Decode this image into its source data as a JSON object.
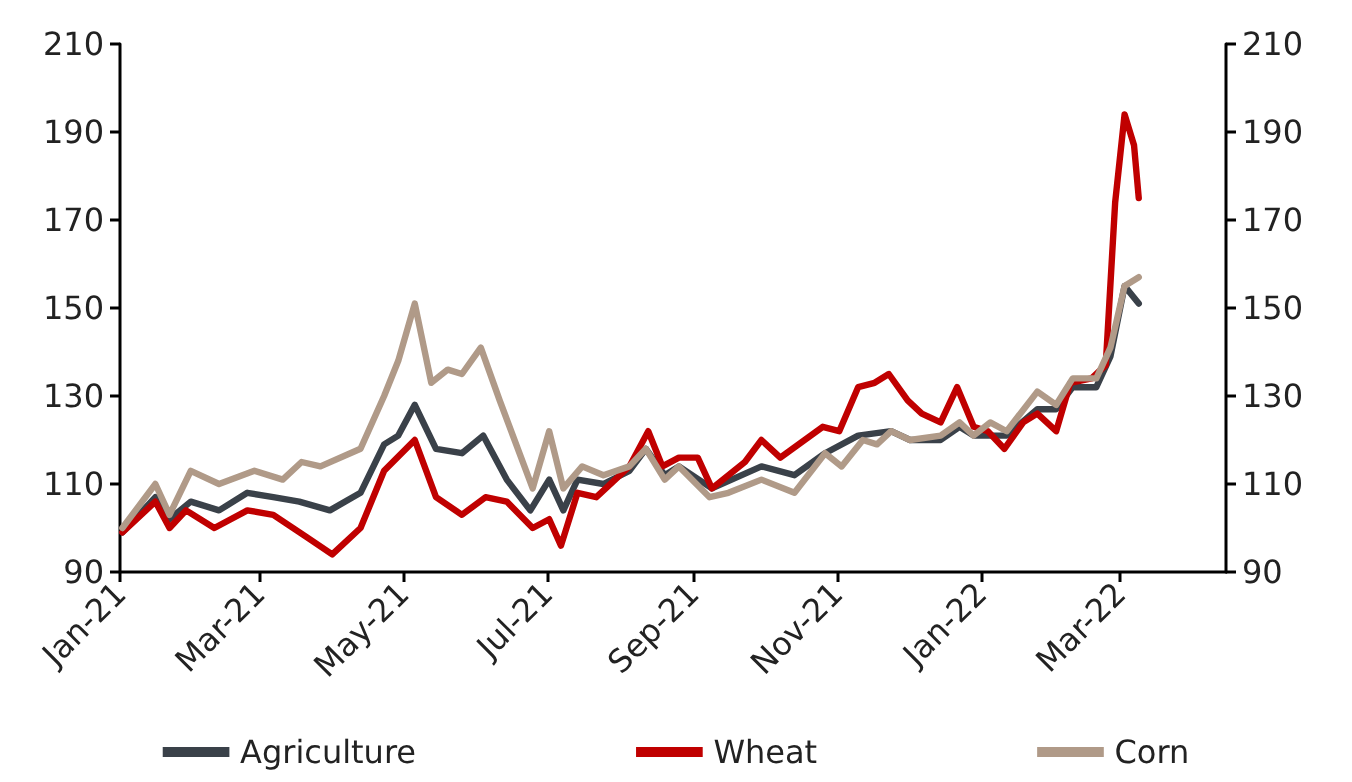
{
  "chart_data": {
    "type": "line",
    "xlim": [
      "2021-01-01",
      "2022-04-15"
    ],
    "xticks": [
      {
        "value": "2021-01-01",
        "label": "Jan-21"
      },
      {
        "value": "2021-03-01",
        "label": "Mar-21"
      },
      {
        "value": "2021-05-01",
        "label": "May-21"
      },
      {
        "value": "2021-07-01",
        "label": "Jul-21"
      },
      {
        "value": "2021-09-01",
        "label": "Sep-21"
      },
      {
        "value": "2021-11-01",
        "label": "Nov-21"
      },
      {
        "value": "2022-01-01",
        "label": "Jan-22"
      },
      {
        "value": "2022-03-01",
        "label": "Mar-22"
      }
    ],
    "ylim": [
      90,
      210
    ],
    "yticks": [
      90,
      110,
      130,
      150,
      170,
      190,
      210
    ],
    "y2lim": [
      90,
      210
    ],
    "y2ticks": [
      90,
      110,
      130,
      150,
      170,
      190,
      210
    ],
    "grid": false,
    "legend": "bottom",
    "marker": "none",
    "line_style": "solid",
    "series": [
      {
        "name": "Agriculture",
        "color": "#3a4149",
        "x": [
          "2021-01-02",
          "2021-01-16",
          "2021-01-22",
          "2021-01-31",
          "2021-02-12",
          "2021-02-24",
          "2021-03-07",
          "2021-03-18",
          "2021-03-31",
          "2021-04-13",
          "2021-04-23",
          "2021-04-29",
          "2021-05-06",
          "2021-05-15",
          "2021-05-26",
          "2021-06-04",
          "2021-06-14",
          "2021-06-24",
          "2021-07-02",
          "2021-07-08",
          "2021-07-14",
          "2021-07-25",
          "2021-08-05",
          "2021-08-12",
          "2021-08-20",
          "2021-08-26",
          "2021-09-09",
          "2021-09-30",
          "2021-10-14",
          "2021-10-27",
          "2021-11-10",
          "2021-11-24",
          "2021-12-02",
          "2021-12-15",
          "2021-12-23",
          "2021-12-29",
          "2022-01-12",
          "2022-01-25",
          "2022-02-02",
          "2022-02-09",
          "2022-02-19",
          "2022-02-25",
          "2022-03-03",
          "2022-03-09"
        ],
        "values": [
          99,
          107,
          102,
          106,
          104,
          108,
          107,
          106,
          104,
          108,
          119,
          121,
          128,
          118,
          117,
          121,
          111,
          104,
          111,
          104,
          111,
          110,
          113,
          118,
          112,
          114,
          109,
          114,
          112,
          117,
          121,
          122,
          120,
          120,
          123,
          121,
          121,
          127,
          127,
          132,
          132,
          139,
          155,
          151
        ]
      },
      {
        "name": "Wheat",
        "color": "#c00000",
        "x": [
          "2021-01-02",
          "2021-01-16",
          "2021-01-22",
          "2021-01-29",
          "2021-02-10",
          "2021-02-24",
          "2021-03-07",
          "2021-03-21",
          "2021-04-01",
          "2021-04-13",
          "2021-04-23",
          "2021-05-06",
          "2021-05-15",
          "2021-05-26",
          "2021-06-05",
          "2021-06-14",
          "2021-06-25",
          "2021-07-02",
          "2021-07-07",
          "2021-07-14",
          "2021-07-22",
          "2021-08-05",
          "2021-08-13",
          "2021-08-19",
          "2021-08-26",
          "2021-09-03",
          "2021-09-09",
          "2021-09-16",
          "2021-09-23",
          "2021-09-30",
          "2021-10-08",
          "2021-10-26",
          "2021-11-02",
          "2021-11-10",
          "2021-11-17",
          "2021-11-23",
          "2021-12-01",
          "2021-12-07",
          "2021-12-15",
          "2021-12-22",
          "2021-12-29",
          "2022-01-04",
          "2022-01-11",
          "2022-01-19",
          "2022-01-25",
          "2022-02-02",
          "2022-02-08",
          "2022-02-17",
          "2022-02-23",
          "2022-02-27",
          "2022-03-03",
          "2022-03-07",
          "2022-03-09"
        ],
        "values": [
          99,
          106,
          100,
          104,
          100,
          104,
          103,
          98,
          94,
          100,
          113,
          120,
          107,
          103,
          107,
          106,
          100,
          102,
          96,
          108,
          107,
          114,
          122,
          114,
          116,
          116,
          109,
          112,
          115,
          120,
          116,
          123,
          122,
          132,
          133,
          135,
          129,
          126,
          124,
          132,
          123,
          122,
          118,
          124,
          126,
          122,
          133,
          134,
          137,
          174,
          194,
          187,
          175
        ]
      },
      {
        "name": "Corn",
        "color": "#b09a88",
        "x": [
          "2021-01-02",
          "2021-01-16",
          "2021-01-22",
          "2021-01-31",
          "2021-02-12",
          "2021-02-27",
          "2021-03-11",
          "2021-03-19",
          "2021-03-27",
          "2021-04-13",
          "2021-04-23",
          "2021-04-29",
          "2021-05-06",
          "2021-05-13",
          "2021-05-20",
          "2021-05-26",
          "2021-06-03",
          "2021-06-11",
          "2021-06-25",
          "2021-07-02",
          "2021-07-08",
          "2021-07-16",
          "2021-07-25",
          "2021-08-05",
          "2021-08-12",
          "2021-08-20",
          "2021-08-26",
          "2021-09-08",
          "2021-09-16",
          "2021-09-30",
          "2021-10-14",
          "2021-10-27",
          "2021-11-03",
          "2021-11-12",
          "2021-11-18",
          "2021-11-24",
          "2021-12-02",
          "2021-12-15",
          "2021-12-23",
          "2021-12-29",
          "2022-01-05",
          "2022-01-12",
          "2022-01-25",
          "2022-02-02",
          "2022-02-09",
          "2022-02-19",
          "2022-02-25",
          "2022-03-03",
          "2022-03-09"
        ],
        "values": [
          100,
          110,
          103,
          113,
          110,
          113,
          111,
          115,
          114,
          118,
          130,
          138,
          151,
          133,
          136,
          135,
          141,
          129,
          109,
          122,
          109,
          114,
          112,
          114,
          118,
          111,
          114,
          107,
          108,
          111,
          108,
          117,
          114,
          120,
          119,
          122,
          120,
          121,
          124,
          121,
          124,
          122,
          131,
          128,
          134,
          134,
          141,
          155,
          157
        ]
      }
    ]
  }
}
